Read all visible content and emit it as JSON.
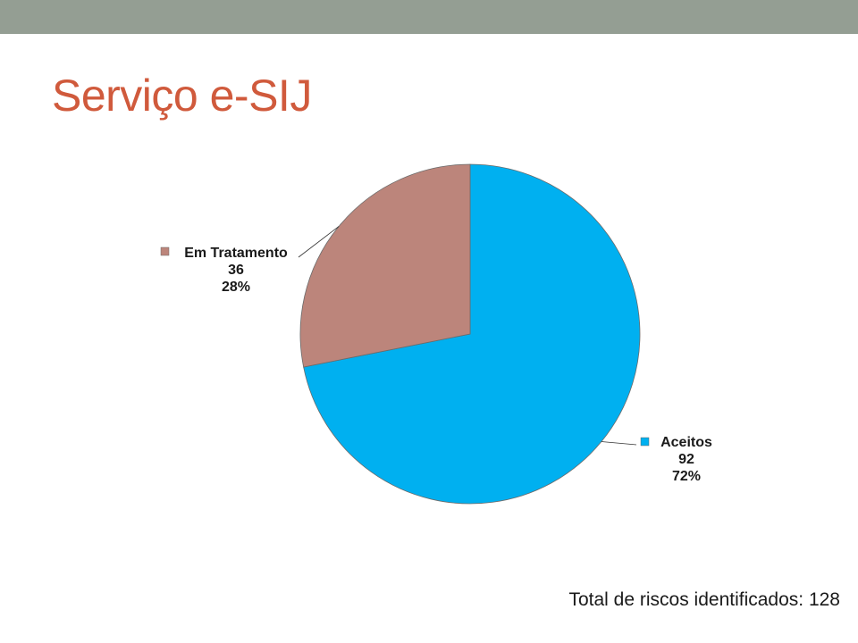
{
  "slide": {
    "title": "Serviço e-SIJ",
    "footer": "Total de riscos identificados: 128"
  },
  "chart_data": {
    "type": "pie",
    "slices": [
      {
        "name": "Aceitos",
        "value": 92,
        "percent": "72%",
        "color": "#00b0f0"
      },
      {
        "name": "Em Tratamento",
        "value": 36,
        "percent": "28%",
        "color": "#bc857b"
      }
    ]
  }
}
